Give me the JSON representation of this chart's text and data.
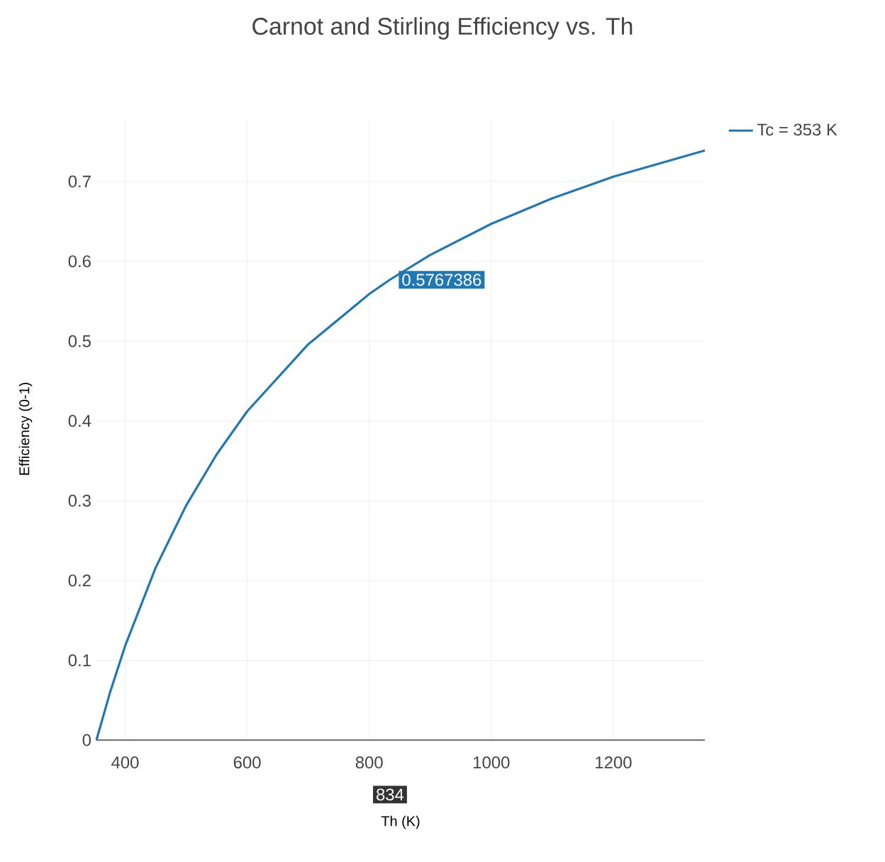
{
  "chart_data": {
    "type": "line",
    "title": "Carnot and Stirling Efficiency vs. Th",
    "xlabel": "Th (K)",
    "ylabel": "Efficiency (0-1)",
    "series": [
      {
        "name": "Tc = 353 K",
        "color": "#1f77b4",
        "x": [
          353,
          375,
          400,
          450,
          500,
          550,
          600,
          700,
          800,
          834,
          900,
          1000,
          1100,
          1200,
          1350
        ],
        "values": [
          0,
          0.059,
          0.118,
          0.216,
          0.294,
          0.358,
          0.412,
          0.496,
          0.559,
          0.577,
          0.608,
          0.647,
          0.679,
          0.706,
          0.739
        ]
      }
    ],
    "xlim": [
      353,
      1350
    ],
    "ylim": [
      0,
      0.78
    ],
    "xticks": [
      400,
      600,
      800,
      1000,
      1200
    ],
    "yticks": [
      0,
      0.1,
      0.2,
      0.3,
      0.4,
      0.5,
      0.6,
      0.7
    ],
    "grid": true,
    "legend": "top right",
    "marker": "none",
    "line_style": "solid",
    "annotations": [
      {
        "text": "0.5767386",
        "x": 834,
        "y": 0.5767386
      },
      "834"
    ]
  }
}
